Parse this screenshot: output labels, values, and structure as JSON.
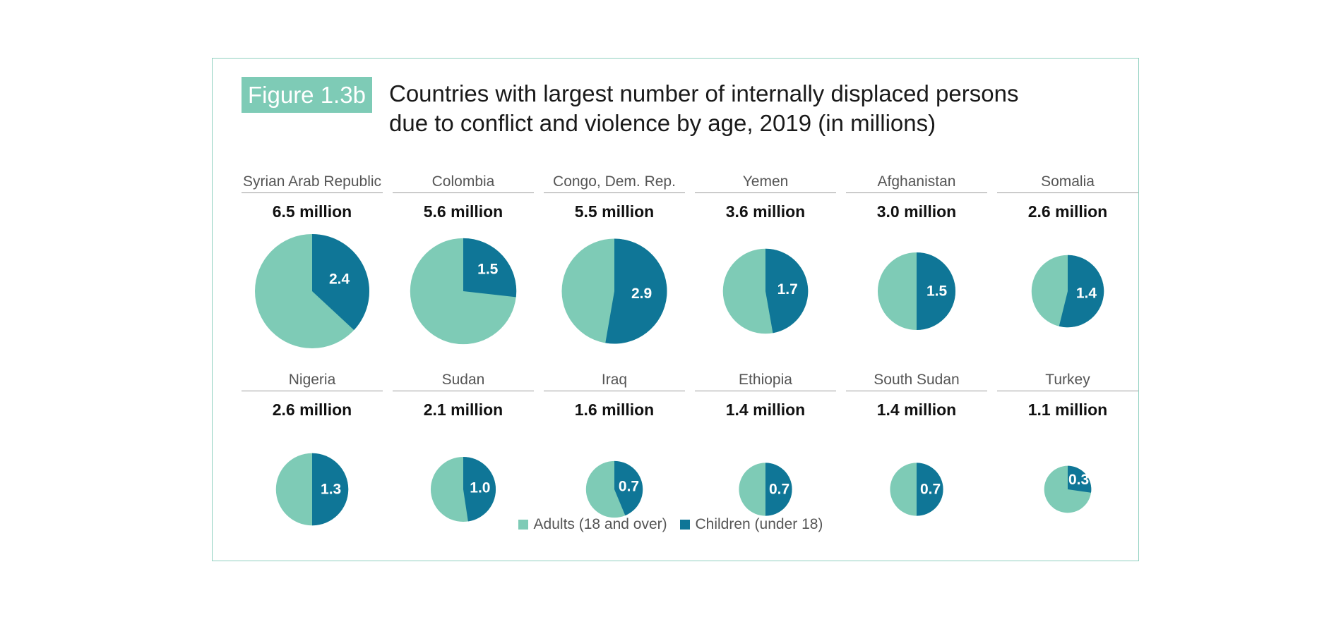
{
  "figure": {
    "tag": "Figure 1.3b",
    "title_line1": "Countries with largest number of internally displaced persons",
    "title_line2": "due to conflict and violence by age, 2019 (in millions)"
  },
  "colors": {
    "adults": "#7ecbb6",
    "children": "#0f7697",
    "border": "#8fd0bf"
  },
  "legend": [
    {
      "label": "Adults (18 and over)",
      "series": "adults"
    },
    {
      "label": "Children (under 18)",
      "series": "children"
    }
  ],
  "chart_data": {
    "type": "pie",
    "title": "Countries with largest number of internally displaced persons due to conflict and violence by age, 2019 (in millions)",
    "unit": "million",
    "series_names": [
      "Adults (18 and over)",
      "Children (under 18)"
    ],
    "legend_position": "bottom",
    "countries": [
      {
        "name": "Syrian Arab Republic",
        "total": 6.5,
        "total_label": "6.5 million",
        "children": 2.4,
        "children_label": "2.4"
      },
      {
        "name": "Colombia",
        "total": 5.6,
        "total_label": "5.6 million",
        "children": 1.5,
        "children_label": "1.5"
      },
      {
        "name": "Congo, Dem. Rep.",
        "total": 5.5,
        "total_label": "5.5 million",
        "children": 2.9,
        "children_label": "2.9"
      },
      {
        "name": "Yemen",
        "total": 3.6,
        "total_label": "3.6 million",
        "children": 1.7,
        "children_label": "1.7"
      },
      {
        "name": "Afghanistan",
        "total": 3.0,
        "total_label": "3.0 million",
        "children": 1.5,
        "children_label": "1.5"
      },
      {
        "name": "Somalia",
        "total": 2.6,
        "total_label": "2.6 million",
        "children": 1.4,
        "children_label": "1.4"
      },
      {
        "name": "Nigeria",
        "total": 2.6,
        "total_label": "2.6 million",
        "children": 1.3,
        "children_label": "1.3"
      },
      {
        "name": "Sudan",
        "total": 2.1,
        "total_label": "2.1 million",
        "children": 1.0,
        "children_label": "1.0"
      },
      {
        "name": "Iraq",
        "total": 1.6,
        "total_label": "1.6 million",
        "children": 0.7,
        "children_label": "0.7"
      },
      {
        "name": "Ethiopia",
        "total": 1.4,
        "total_label": "1.4 million",
        "children": 0.7,
        "children_label": "0.7"
      },
      {
        "name": "South Sudan",
        "total": 1.4,
        "total_label": "1.4 million",
        "children": 0.7,
        "children_label": "0.7"
      },
      {
        "name": "Turkey",
        "total": 1.1,
        "total_label": "1.1 million",
        "children": 0.3,
        "children_label": "0.3"
      }
    ]
  }
}
